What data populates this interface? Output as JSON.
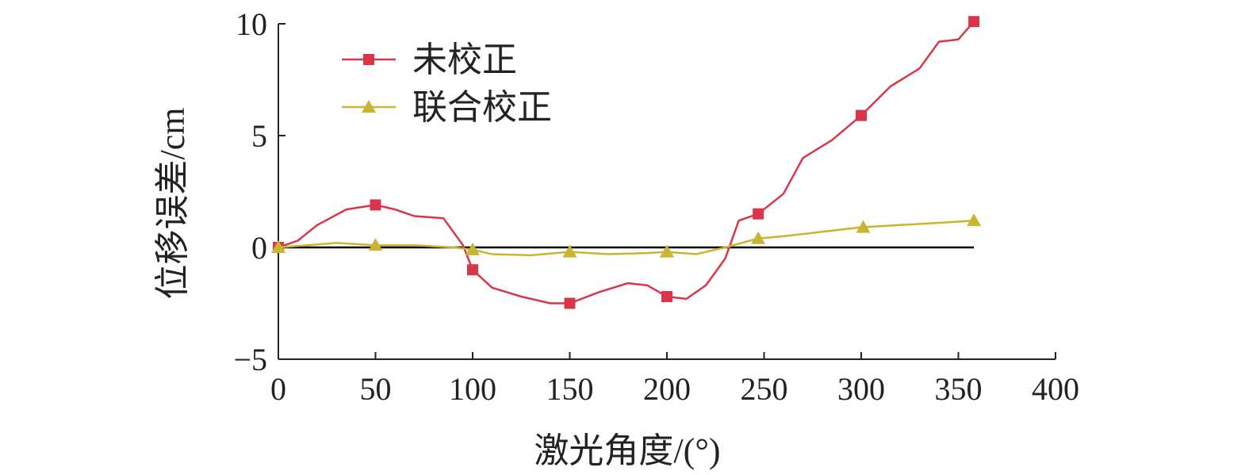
{
  "chart_data": {
    "type": "line",
    "xlabel": "激光角度/(°)",
    "ylabel": "位移误差/cm",
    "xlim": [
      0,
      400
    ],
    "ylim": [
      -5,
      10
    ],
    "x_ticks": [
      "0",
      "50",
      "100",
      "150",
      "200",
      "250",
      "300",
      "350",
      "400"
    ],
    "y_ticks": [
      "−5",
      "0",
      "5",
      "10"
    ],
    "x_tick_values": [
      0,
      50,
      100,
      150,
      200,
      250,
      300,
      350,
      400
    ],
    "y_tick_values": [
      -5,
      0,
      5,
      10
    ],
    "grid": false,
    "zero_line": true,
    "legend_position": "top-left",
    "series": [
      {
        "name": "未校正",
        "color": "#d9364a",
        "marker": "square",
        "x": [
          0,
          10,
          20,
          35,
          50,
          60,
          70,
          85,
          95,
          100,
          110,
          125,
          140,
          150,
          165,
          180,
          190,
          200,
          210,
          220,
          230,
          237,
          247,
          260,
          270,
          285,
          300,
          315,
          330,
          340,
          350,
          358
        ],
        "y": [
          0,
          0.3,
          1.0,
          1.7,
          1.9,
          1.7,
          1.4,
          1.3,
          0.1,
          -1.0,
          -1.8,
          -2.2,
          -2.5,
          -2.5,
          -2.0,
          -1.6,
          -1.7,
          -2.2,
          -2.3,
          -1.7,
          -0.5,
          1.2,
          1.5,
          2.4,
          4.0,
          4.8,
          5.9,
          7.2,
          8.0,
          9.2,
          9.3,
          10.1
        ],
        "marker_x": [
          0,
          50,
          100,
          150,
          200,
          247,
          300,
          358
        ],
        "marker_y": [
          0,
          1.9,
          -1.0,
          -2.5,
          -2.2,
          1.5,
          5.9,
          10.1
        ]
      },
      {
        "name": "联合校正",
        "color": "#c9b532",
        "marker": "triangle",
        "x": [
          0,
          30,
          50,
          70,
          90,
          100,
          110,
          130,
          150,
          170,
          190,
          200,
          215,
          230,
          247,
          260,
          280,
          300,
          320,
          340,
          358
        ],
        "y": [
          0,
          0.2,
          0.1,
          0.1,
          0,
          -0.1,
          -0.3,
          -0.35,
          -0.2,
          -0.3,
          -0.25,
          -0.2,
          -0.3,
          0,
          0.4,
          0.5,
          0.7,
          0.9,
          1.0,
          1.1,
          1.2
        ],
        "marker_x": [
          0,
          50,
          100,
          150,
          200,
          247,
          301,
          358
        ],
        "marker_y": [
          0,
          0.1,
          -0.1,
          -0.2,
          -0.2,
          0.4,
          0.9,
          1.2
        ]
      }
    ]
  }
}
